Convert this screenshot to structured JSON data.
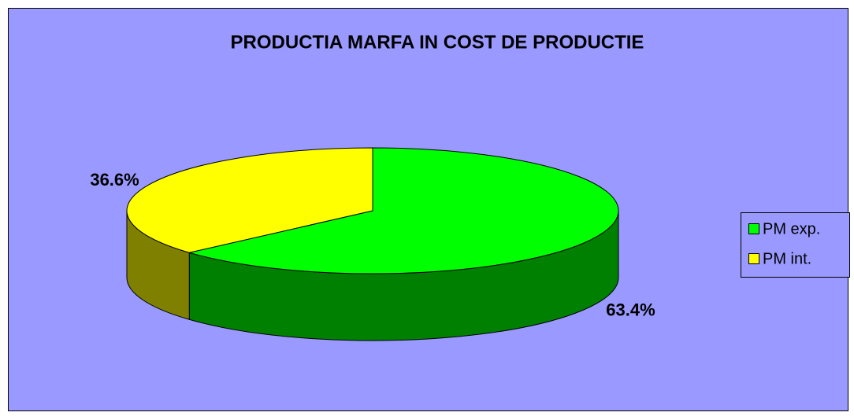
{
  "chart_data": {
    "type": "pie",
    "title": "PRODUCTIA MARFA IN COST DE PRODUCTIE",
    "categories": [
      "PM exp.",
      "PM int."
    ],
    "values": [
      63.4,
      36.6
    ],
    "value_labels": [
      "63.4%",
      "36.6%"
    ],
    "colors": [
      "#00ff00",
      "#ffff00"
    ],
    "side_colors": [
      "#008000",
      "#808000"
    ],
    "legend": "right"
  }
}
